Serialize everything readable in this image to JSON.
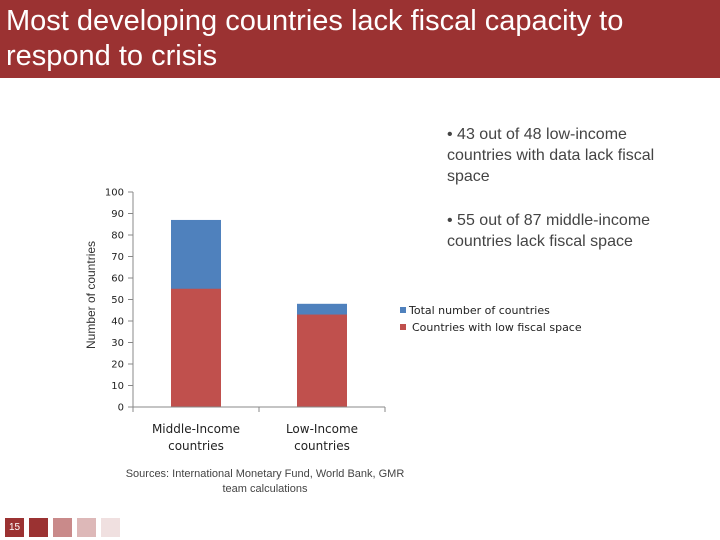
{
  "slide": {
    "title": "Most developing countries lack fiscal capacity to respond to crisis",
    "bullets": [
      "• 43 out of 48 low-income countries with data lack fiscal space",
      "• 55 out of 87 middle-income countries lack fiscal space"
    ],
    "source": "Sources: International Monetary Fund, World Bank, GMR team calculations",
    "page_number": "15"
  },
  "colors": {
    "title_bar": "#9b3232",
    "total_series": "#4f81bd",
    "low_fiscal_series": "#c0504d",
    "footer_squares": [
      "#9b3232",
      "#c98a8a",
      "#ddb8b8",
      "#f0e0e0"
    ]
  },
  "chart_data": {
    "type": "bar",
    "stacked": "overlay",
    "categories": [
      "Middle-Income countries",
      "Low-Income countries"
    ],
    "category_lines": [
      [
        "Middle-Income",
        "countries"
      ],
      [
        "Low-Income",
        "countries"
      ]
    ],
    "series": [
      {
        "name": "Total number of countries",
        "values": [
          87,
          48
        ]
      },
      {
        "name": "Countries with low fiscal space",
        "values": [
          55,
          43
        ]
      }
    ],
    "ylabel": "Number of countries",
    "ylim": [
      0,
      100
    ],
    "yticks": [
      0,
      10,
      20,
      30,
      40,
      50,
      60,
      70,
      80,
      90,
      100
    ],
    "legend_position": "right",
    "grid": false
  }
}
